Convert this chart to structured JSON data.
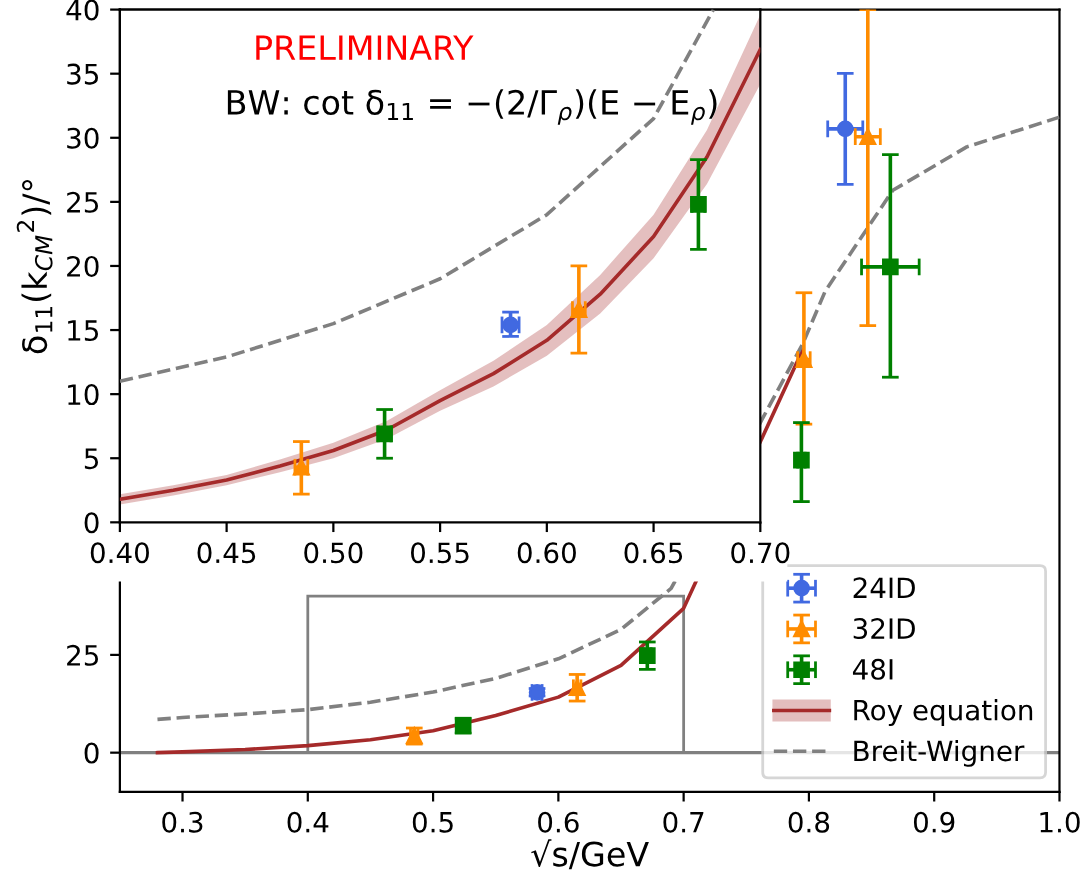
{
  "chart_data": [
    {
      "type": "scatter",
      "ylabel": "δ$_{11}$(k$_{CM}$$^{2}$)/°",
      "annotations": [
        "PRELIMINARY",
        "BW: cot δ$_{11}$ = −(2/Γ$_{ρ}$)(E − E$_{ρ}$)"
      ],
      "xlim": [
        0.4,
        0.7
      ],
      "xticks": [
        {
          "value": 0.4,
          "label": "0.40"
        },
        {
          "value": 0.45,
          "label": "0.45"
        },
        {
          "value": 0.5,
          "label": "0.50"
        },
        {
          "value": 0.55,
          "label": "0.55"
        },
        {
          "value": 0.6,
          "label": "0.60"
        },
        {
          "value": 0.65,
          "label": "0.65"
        },
        {
          "value": 0.7,
          "label": "0.70"
        }
      ],
      "ylim": [
        0,
        40
      ],
      "yticks": [
        0,
        5,
        10,
        15,
        20,
        25,
        30,
        35,
        40
      ],
      "series": [
        {
          "type": "line",
          "color": "#a52a2a",
          "x": [
            0.4,
            0.425,
            0.45,
            0.475,
            0.5,
            0.525,
            0.55,
            0.575,
            0.6,
            0.625,
            0.65,
            0.675,
            0.7
          ],
          "values": [
            1.8,
            2.5,
            3.3,
            4.4,
            5.6,
            7.2,
            9.5,
            11.6,
            14.2,
            17.8,
            22.3,
            28.5,
            36.9
          ],
          "lower": [
            1.4,
            2.1,
            2.9,
            3.9,
            5.0,
            6.5,
            8.7,
            10.6,
            13.0,
            16.3,
            20.6,
            26.4,
            34.2
          ],
          "upper": [
            2.2,
            2.9,
            3.7,
            4.9,
            6.2,
            7.9,
            10.3,
            12.6,
            15.4,
            19.3,
            24.0,
            30.6,
            39.6
          ]
        },
        {
          "type": "line",
          "color": "#808080",
          "line_style": "dashed",
          "x": [
            0.4,
            0.45,
            0.5,
            0.55,
            0.6,
            0.65,
            0.678
          ],
          "values": [
            11.0,
            12.9,
            15.5,
            19.0,
            24.0,
            31.5,
            40.0
          ]
        },
        {
          "color": "#4169e1",
          "marker": "circle",
          "x": [
            0.583
          ],
          "values": [
            15.4
          ],
          "errors": [
            [
              14.5,
              16.4
            ]
          ],
          "xerrors": [
            0.004
          ]
        },
        {
          "color": "#ff8c00",
          "marker": "triangle",
          "x": [
            0.485,
            0.615
          ],
          "values": [
            4.3,
            16.6
          ],
          "errors": [
            [
              2.2,
              6.3
            ],
            [
              13.2,
              20.0
            ]
          ],
          "xerrors": [
            0.003,
            0.003
          ]
        },
        {
          "color": "#008000",
          "marker": "square",
          "x": [
            0.524,
            0.671
          ],
          "values": [
            6.9,
            24.8
          ],
          "errors": [
            [
              5.0,
              8.8
            ],
            [
              21.3,
              28.3
            ]
          ],
          "xerrors": [
            0.003,
            0.003
          ]
        }
      ]
    },
    {
      "type": "scatter",
      "xlabel": "√s/GeV",
      "legend": "bottom right",
      "xlim": [
        0.25,
        1.0
      ],
      "xticks": [
        0.3,
        0.4,
        0.5,
        0.6,
        0.7,
        0.8,
        0.9,
        {
          "value": 1.0,
          "label": "1.0"
        }
      ],
      "ylim": [
        -10,
        190
      ],
      "yticks": [
        0,
        25
      ],
      "ref_lines": [
        {
          "axis": "y",
          "value": 0,
          "color": "#808080"
        }
      ],
      "series": [
        {
          "name": "24ID",
          "color": "#4169e1",
          "marker": "circle",
          "x": [
            0.583,
            0.829
          ],
          "values": [
            15.4,
            159.5
          ],
          "errors": [
            [
              14.5,
              16.4
            ],
            [
              145.3,
              173.7
            ]
          ],
          "xerrors": [
            0.004,
            0.014
          ]
        },
        {
          "name": "32ID",
          "color": "#ff8c00",
          "marker": "triangle",
          "x": [
            0.485,
            0.615,
            0.796,
            0.847
          ],
          "values": [
            4.3,
            16.6,
            100.5,
            157.5
          ],
          "errors": [
            [
              2.2,
              6.3
            ],
            [
              13.2,
              20.0
            ],
            [
              84,
              117.6
            ],
            [
              109.2,
              190
            ]
          ],
          "xerrors": [
            0.003,
            0.003,
            0.005,
            0.01
          ]
        },
        {
          "name": "48I",
          "color": "#008000",
          "marker": "square",
          "x": [
            0.524,
            0.671,
            0.794,
            0.865
          ],
          "values": [
            6.9,
            24.8,
            74.8,
            124.2
          ],
          "errors": [
            [
              5.0,
              8.8
            ],
            [
              21.3,
              28.3
            ],
            [
              64.2,
              84.4
            ],
            [
              96.0,
              152.9
            ]
          ],
          "xerrors": [
            0.003,
            0.003,
            0.003,
            0.023
          ]
        },
        {
          "name": "Roy equation",
          "type": "line",
          "color": "#a52a2a",
          "x": [
            0.28,
            0.3,
            0.35,
            0.4,
            0.45,
            0.5,
            0.55,
            0.6,
            0.65,
            0.7,
            0.795
          ],
          "values": [
            0,
            0.2,
            0.8,
            1.8,
            3.3,
            5.6,
            9.5,
            14.2,
            22.3,
            36.9,
            103
          ]
        },
        {
          "name": "Breit-Wigner",
          "type": "line",
          "color": "#808080",
          "line_style": "dashed",
          "x": [
            0.28,
            0.3,
            0.35,
            0.4,
            0.45,
            0.5,
            0.55,
            0.6,
            0.65,
            0.69,
            0.795,
            0.813,
            0.867,
            0.926,
            1.0
          ],
          "values": [
            8.5,
            9.0,
            9.9,
            11.0,
            12.9,
            15.5,
            19.0,
            24.0,
            31.5,
            42,
            104.5,
            118,
            143.8,
            154.9,
            162.5
          ]
        }
      ]
    }
  ]
}
